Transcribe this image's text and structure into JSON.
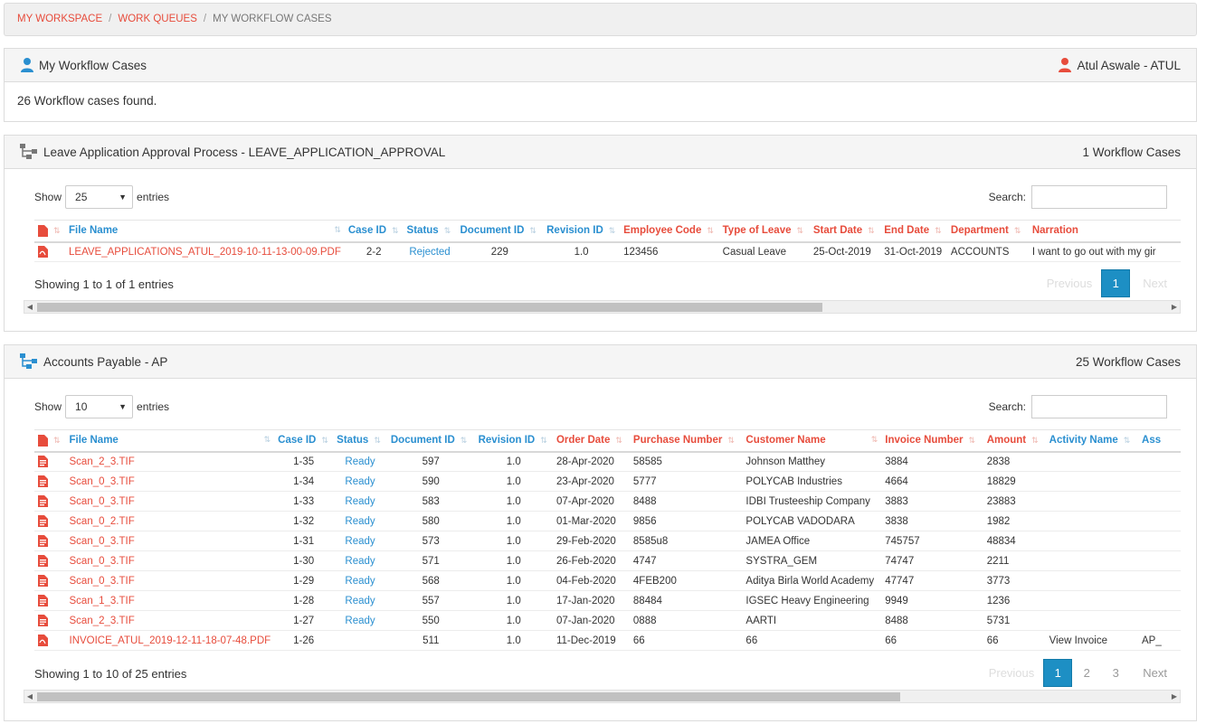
{
  "breadcrumb": {
    "items": [
      "MY WORKSPACE",
      "WORK QUEUES"
    ],
    "current": "MY WORKFLOW CASES"
  },
  "summary": {
    "title": "My Workflow Cases",
    "user": "Atul Aswale - ATUL",
    "found_text": "26 Workflow cases found."
  },
  "leave": {
    "title": "Leave Application Approval Process - LEAVE_APPLICATION_APPROVAL",
    "count": "1 Workflow Cases",
    "show_label": "Show",
    "entries_label": "entries",
    "page_length": "25",
    "search_label": "Search:",
    "columns": [
      "File Name",
      "Case ID",
      "Status",
      "Document ID",
      "Revision ID",
      "Employee Code",
      "Type of Leave",
      "Start Date",
      "End Date",
      "Department",
      "Narration"
    ],
    "rows": [
      {
        "file": "LEAVE_APPLICATIONS_ATUL_2019-10-11-13-00-09.PDF",
        "case": "2-2",
        "status": "Rejected",
        "doc": "229",
        "rev": "1.0",
        "emp": "123456",
        "type": "Casual Leave",
        "start": "25-Oct-2019",
        "end": "31-Oct-2019",
        "dept": "ACCOUNTS",
        "narr": "I want to go out with my gir"
      }
    ],
    "info": "Showing 1 to 1 of 1 entries",
    "pager": {
      "previous": "Previous",
      "pages": [
        "1"
      ],
      "next": "Next"
    }
  },
  "ap": {
    "title": "Accounts Payable - AP",
    "count": "25 Workflow Cases",
    "show_label": "Show",
    "entries_label": "entries",
    "page_length": "10",
    "search_label": "Search:",
    "columns": [
      "File Name",
      "Case ID",
      "Status",
      "Document ID",
      "Revision ID",
      "Order Date",
      "Purchase Number",
      "Customer Name",
      "Invoice Number",
      "Amount",
      "Activity Name",
      "Ass"
    ],
    "rows": [
      {
        "file": "Scan_2_3.TIF",
        "case": "1-35",
        "status": "Ready",
        "doc": "597",
        "rev": "1.0",
        "date": "28-Apr-2020",
        "po": "58585",
        "cust": "Johnson Matthey",
        "inv": "3884",
        "amt": "2838",
        "act": "",
        "ass": ""
      },
      {
        "file": "Scan_0_3.TIF",
        "case": "1-34",
        "status": "Ready",
        "doc": "590",
        "rev": "1.0",
        "date": "23-Apr-2020",
        "po": "5777",
        "cust": "POLYCAB Industries",
        "inv": "4664",
        "amt": "18829",
        "act": "",
        "ass": ""
      },
      {
        "file": "Scan_0_3.TIF",
        "case": "1-33",
        "status": "Ready",
        "doc": "583",
        "rev": "1.0",
        "date": "07-Apr-2020",
        "po": "8488",
        "cust": "IDBI Trusteeship Company",
        "inv": "3883",
        "amt": "23883",
        "act": "",
        "ass": ""
      },
      {
        "file": "Scan_0_2.TIF",
        "case": "1-32",
        "status": "Ready",
        "doc": "580",
        "rev": "1.0",
        "date": "01-Mar-2020",
        "po": "9856",
        "cust": "POLYCAB VADODARA",
        "inv": "3838",
        "amt": "1982",
        "act": "",
        "ass": ""
      },
      {
        "file": "Scan_0_3.TIF",
        "case": "1-31",
        "status": "Ready",
        "doc": "573",
        "rev": "1.0",
        "date": "29-Feb-2020",
        "po": "8585u8",
        "cust": "JAMEA Office",
        "inv": "745757",
        "amt": "48834",
        "act": "",
        "ass": ""
      },
      {
        "file": "Scan_0_3.TIF",
        "case": "1-30",
        "status": "Ready",
        "doc": "571",
        "rev": "1.0",
        "date": "26-Feb-2020",
        "po": "4747",
        "cust": "SYSTRA_GEM",
        "inv": "74747",
        "amt": "2211",
        "act": "",
        "ass": ""
      },
      {
        "file": "Scan_0_3.TIF",
        "case": "1-29",
        "status": "Ready",
        "doc": "568",
        "rev": "1.0",
        "date": "04-Feb-2020",
        "po": "4FEB200",
        "cust": "Aditya Birla World Academy",
        "inv": "47747",
        "amt": "3773",
        "act": "",
        "ass": ""
      },
      {
        "file": "Scan_1_3.TIF",
        "case": "1-28",
        "status": "Ready",
        "doc": "557",
        "rev": "1.0",
        "date": "17-Jan-2020",
        "po": "88484",
        "cust": "IGSEC Heavy Engineering",
        "inv": "9949",
        "amt": "1236",
        "act": "",
        "ass": ""
      },
      {
        "file": "Scan_2_3.TIF",
        "case": "1-27",
        "status": "Ready",
        "doc": "550",
        "rev": "1.0",
        "date": "07-Jan-2020",
        "po": "0888",
        "cust": "AARTI",
        "inv": "8488",
        "amt": "5731",
        "act": "",
        "ass": ""
      },
      {
        "file": "INVOICE_ATUL_2019-12-11-18-07-48.PDF",
        "case": "1-26",
        "status": "",
        "doc": "511",
        "rev": "1.0",
        "date": "11-Dec-2019",
        "po": "66",
        "cust": "66",
        "inv": "66",
        "amt": "66",
        "act": "View Invoice",
        "ass": "AP_"
      }
    ],
    "info": "Showing 1 to 10 of 25 entries",
    "pager": {
      "previous": "Previous",
      "pages": [
        "1",
        "2",
        "3"
      ],
      "next": "Next"
    }
  },
  "colors": {
    "accent_red": "#e74c3c",
    "accent_blue": "#2a8fd0",
    "page_active": "#1d8fc4"
  }
}
